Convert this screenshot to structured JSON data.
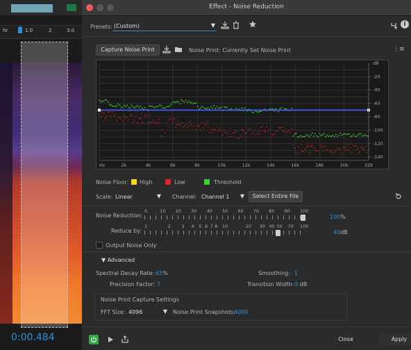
{
  "host": {
    "ruler": [
      "hr",
      "1.0",
      "2",
      "3.0"
    ],
    "timecode": "0:00.484"
  },
  "dialog": {
    "title": "Effect - Noise Reduction",
    "presets": {
      "label": "Presets:",
      "value": "(Custom)"
    },
    "capture": {
      "button": "Capture Noise Print",
      "status": "Noise Print: Currently Set Noise Print"
    },
    "graph": {
      "y_unit": "dB",
      "y_ticks": [
        "-20",
        "-40",
        "-60",
        "-80",
        "-100",
        "-120",
        "-140"
      ],
      "x_ticks": [
        "Hz",
        "2k",
        "4k",
        "6k",
        "8k",
        "10k",
        "12k",
        "14k",
        "16k",
        "18k",
        "20k",
        "22k"
      ],
      "threshold_db": -70
    },
    "legend": {
      "title": "Noise Floor:",
      "items": [
        {
          "label": "High",
          "color": "#f0d81c"
        },
        {
          "label": "Low",
          "color": "#e02424"
        },
        {
          "label": "Threshold",
          "color": "#3fd12f"
        }
      ]
    },
    "scale": {
      "label": "Scale:",
      "value": "Linear"
    },
    "channel": {
      "label": "Channel:",
      "value": "Channel 1"
    },
    "select_entire_file": "Select Entire File",
    "noise_reduction": {
      "label": "Noise Reduction:",
      "ticks": [
        "0",
        "10",
        "20",
        "30",
        "40",
        "50",
        "60",
        "70",
        "80",
        "90",
        "100"
      ],
      "value": "100",
      "unit": "%",
      "fraction": 1.0
    },
    "reduce_by": {
      "label": "Reduce by:",
      "ticks": [
        "1",
        "2",
        "3",
        "4",
        "5",
        "6",
        "7",
        "8",
        "10",
        "20",
        "30",
        "40",
        "50",
        "70",
        "100"
      ],
      "value": "40",
      "unit": "dB",
      "fraction": 0.84
    },
    "output_noise_only": "Output Noise Only",
    "advanced": {
      "label": "Advanced",
      "spectral_decay": {
        "label": "Spectral Decay Rate:",
        "value": "65",
        "unit": "%"
      },
      "smoothing": {
        "label": "Smoothing:",
        "value": "1"
      },
      "precision": {
        "label": "Precision Factor:",
        "value": "7"
      },
      "transition": {
        "label": "Transition Width:",
        "value": "0",
        "unit": "dB"
      }
    },
    "capture_settings": {
      "title": "Noise Print Capture Settings",
      "fft_label": "FFT Size:",
      "fft_value": "4096",
      "snapshots_label": "Noise Print Snapshots:",
      "snapshots_value": "4000"
    },
    "footer": {
      "close": "Close",
      "apply": "Apply"
    },
    "colors": {
      "accent": "#2e8fd8",
      "power_green": "#2ea84a",
      "threshold_line": "#4a62ff"
    }
  }
}
